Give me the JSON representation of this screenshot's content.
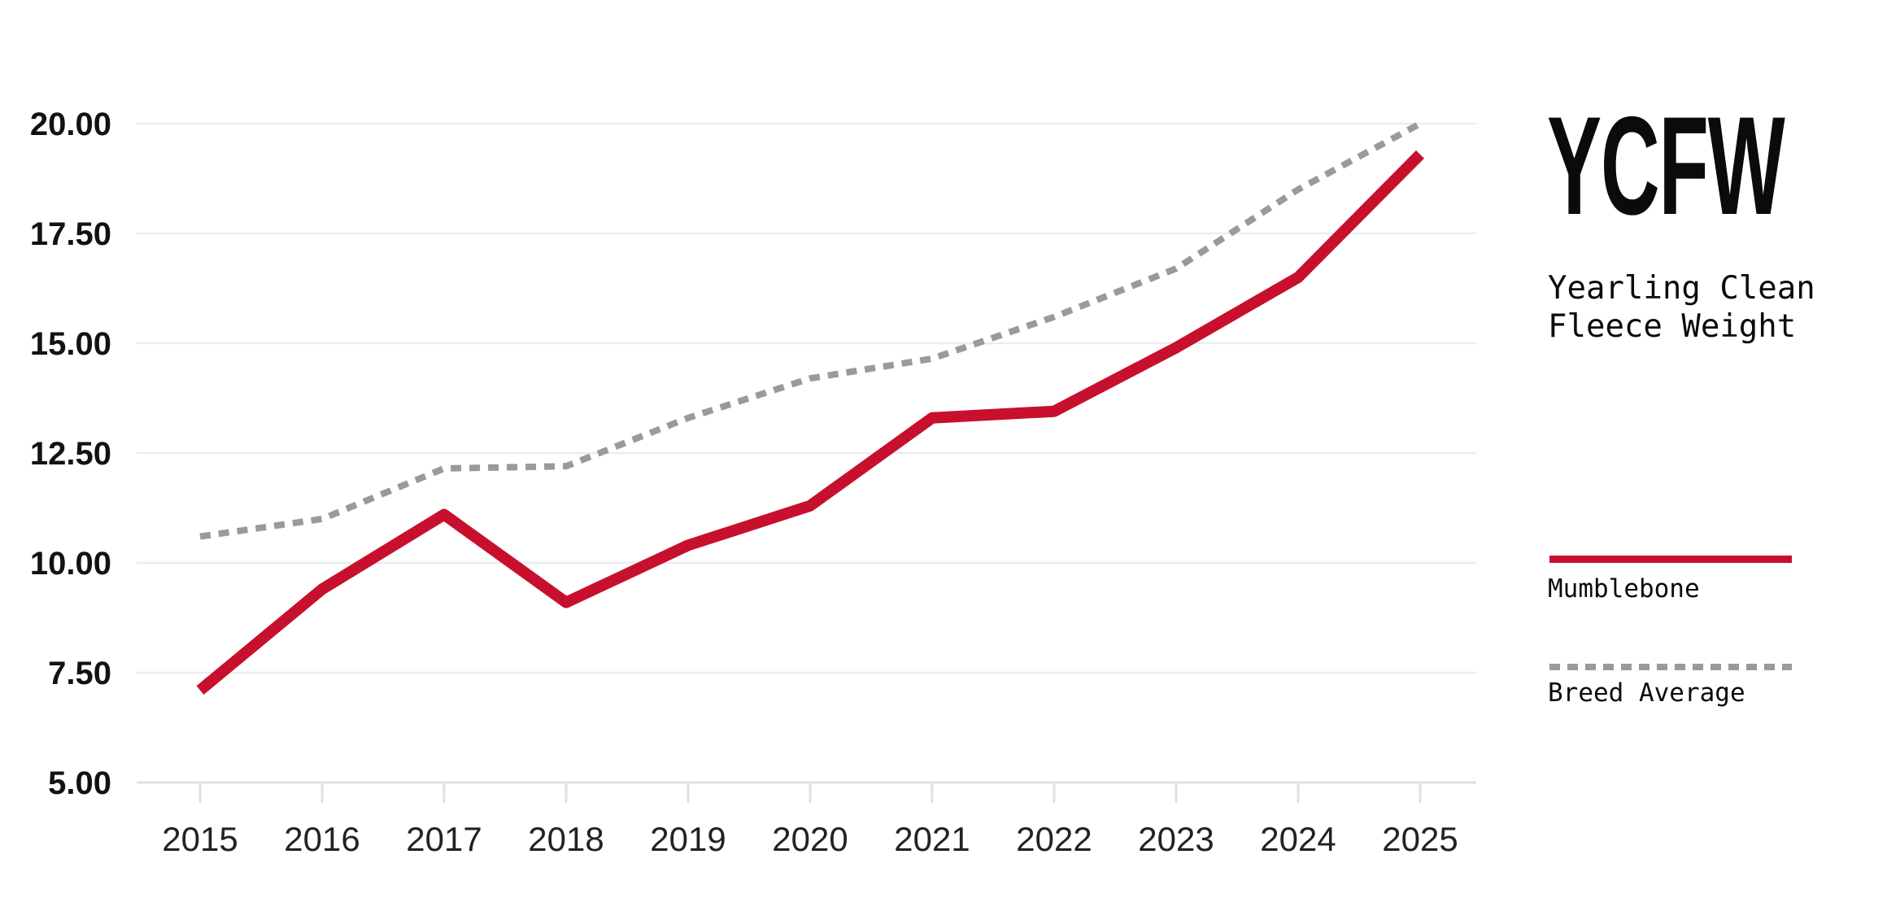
{
  "title": {
    "abbr": "YCFW",
    "subtitle_lines": [
      "Yearling Clean",
      "Fleece Weight"
    ],
    "subtitle_full": "Yearling Clean Fleece Weight"
  },
  "legend": {
    "items": [
      {
        "label": "Mumblebone",
        "style": "solid",
        "color": "#C7102E"
      },
      {
        "label": "Breed Average",
        "style": "dotted",
        "color": "#9A9A9A"
      }
    ],
    "position": "right"
  },
  "colors": {
    "mumblebone": "#C7102E",
    "breed_average": "#9A9A9A",
    "gridline": "#ECECEE",
    "axis": "#E0E0E2",
    "label_dark": "#121212"
  },
  "chart_data": {
    "type": "line",
    "title": "YCFW — Yearling Clean Fleece Weight",
    "x": [
      2015,
      2016,
      2017,
      2018,
      2019,
      2020,
      2021,
      2022,
      2023,
      2024,
      2025
    ],
    "x_tick_labels": [
      "2015",
      "2016",
      "2017",
      "2018",
      "2019",
      "2020",
      "2021",
      "2022",
      "2023",
      "2024",
      "2025"
    ],
    "series": [
      {
        "name": "Mumblebone",
        "style": "solid",
        "color": "#C7102E",
        "values": [
          7.1,
          9.4,
          11.1,
          9.1,
          10.4,
          11.3,
          13.3,
          13.45,
          14.9,
          16.5,
          19.3
        ]
      },
      {
        "name": "Breed Average",
        "style": "dotted",
        "color": "#9A9A9A",
        "values": [
          10.6,
          11.0,
          12.15,
          12.2,
          13.3,
          14.2,
          14.65,
          15.6,
          16.7,
          18.5,
          20.0
        ]
      }
    ],
    "ylim": [
      5.0,
      20.0
    ],
    "yticks": [
      5.0,
      7.5,
      10.0,
      12.5,
      15.0,
      17.5,
      20.0
    ],
    "y_tick_labels": [
      "5.00",
      "7.50",
      "10.00",
      "12.50",
      "15.00",
      "17.50",
      "20.00"
    ],
    "grid": "horizontal-only",
    "legend_position": "right",
    "xlabel": "",
    "ylabel": ""
  }
}
